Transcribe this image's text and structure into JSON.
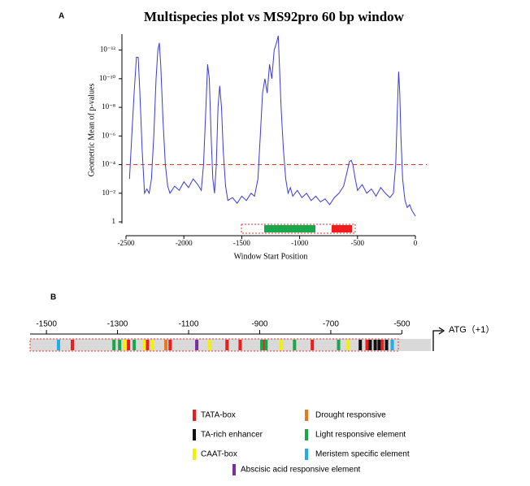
{
  "chart_data": {
    "type": "line",
    "panel": "A",
    "title": "Multispecies plot vs MS92pro 60 bp window",
    "xlabel": "Window Start Position",
    "ylabel": "Geometric Mean of p-values",
    "log_y": true,
    "xlim": [
      -2500,
      0
    ],
    "xticks": [
      -2500,
      -2000,
      -1500,
      -1000,
      -500,
      0
    ],
    "ylim": [
      1,
      1e-13
    ],
    "yticks": [
      {
        "value": 1e-12,
        "label": "10⁻¹²"
      },
      {
        "value": 1e-10,
        "label": "10⁻¹⁰"
      },
      {
        "value": 1e-08,
        "label": "10⁻⁸"
      },
      {
        "value": 1e-06,
        "label": "10⁻⁶"
      },
      {
        "value": 0.0001,
        "label": "10⁻⁴"
      },
      {
        "value": 0.01,
        "label": "10⁻²"
      },
      1
    ],
    "threshold": 0.0001,
    "threshold_color": "#e8332f",
    "color": "#3a3adc",
    "x": [
      -2470,
      -2450,
      -2430,
      -2410,
      -2395,
      -2380,
      -2360,
      -2340,
      -2320,
      -2300,
      -2280,
      -2260,
      -2240,
      -2225,
      -2212,
      -2200,
      -2180,
      -2160,
      -2140,
      -2120,
      -2080,
      -2040,
      -2000,
      -1960,
      -1920,
      -1880,
      -1850,
      -1830,
      -1810,
      -1795,
      -1780,
      -1765,
      -1750,
      -1735,
      -1720,
      -1705,
      -1690,
      -1675,
      -1660,
      -1640,
      -1620,
      -1580,
      -1540,
      -1500,
      -1460,
      -1420,
      -1390,
      -1360,
      -1340,
      -1320,
      -1300,
      -1280,
      -1260,
      -1240,
      -1220,
      -1200,
      -1185,
      -1175,
      -1160,
      -1140,
      -1120,
      -1100,
      -1080,
      -1060,
      -1020,
      -980,
      -940,
      -900,
      -860,
      -820,
      -780,
      -740,
      -700,
      -660,
      -620,
      -590,
      -570,
      -555,
      -540,
      -520,
      -500,
      -460,
      -420,
      -380,
      -340,
      -300,
      -260,
      -220,
      -190,
      -170,
      -155,
      -145,
      -135,
      -125,
      -110,
      -90,
      -70,
      -50,
      -30,
      -15,
      0
    ],
    "values": [
      0.001,
      1e-06,
      1e-09,
      3.2e-12,
      3.2e-12,
      1e-09,
      1e-05,
      0.01,
      0.005,
      0.01,
      0.001,
      1e-06,
      1e-10,
      1e-12,
      3.2e-13,
      1e-11,
      1e-07,
      0.0001,
      0.0032,
      0.01,
      0.0032,
      0.0063,
      0.0016,
      0.004,
      0.001,
      0.0025,
      0.0063,
      0.0001,
      1e-08,
      1e-11,
      1e-10,
      1e-06,
      0.001,
      0.01,
      0.0001,
      1e-08,
      3.2e-10,
      1e-08,
      1e-05,
      0.0032,
      0.032,
      0.02,
      0.05,
      0.016,
      0.032,
      0.01,
      0.016,
      0.001,
      1e-06,
      1e-09,
      1e-10,
      1e-09,
      1e-11,
      1e-10,
      1e-12,
      3.2e-13,
      1e-13,
      1e-11,
      1e-08,
      1e-05,
      0.001,
      0.01,
      0.004,
      0.016,
      0.0063,
      0.02,
      0.01,
      0.032,
      0.016,
      0.04,
      0.025,
      0.063,
      0.02,
      0.01,
      0.0032,
      0.00032,
      6.3e-05,
      5e-05,
      0.0001,
      0.001,
      0.0063,
      0.0025,
      0.01,
      0.005,
      0.016,
      0.004,
      0.01,
      0.02,
      0.01,
      0.0001,
      1e-08,
      3.2e-11,
      1e-09,
      1e-06,
      0.001,
      0.032,
      0.1,
      0.063,
      0.16,
      0.25,
      0.4
    ]
  },
  "promoter": {
    "panel": "B",
    "xlim": [
      -1546,
      -510
    ],
    "xticks": [
      -1500,
      -1300,
      -1100,
      -900,
      -700,
      -500
    ],
    "end_label": "ATG（+1）",
    "legend": [
      {
        "name": "TATA-box",
        "color": "#ee1c1c",
        "positions": [
          -1427,
          -1269,
          -1216,
          -1152,
          -992,
          -955,
          -887,
          -752,
          -598,
          -555
        ]
      },
      {
        "name": "TA-rich enhancer",
        "color": "#111111",
        "positions": [
          -617,
          -589,
          -575,
          -564,
          -543
        ]
      },
      {
        "name": "CAAT-box",
        "color": "#f5f000",
        "positions": [
          -1280,
          -1225,
          -1203,
          -1040,
          -839,
          -651
        ]
      },
      {
        "name": "Drought responsive",
        "color": "#e87722",
        "positions": [
          -1164
        ]
      },
      {
        "name": "Light responsive element",
        "color": "#1aa64a",
        "positions": [
          -1310,
          -1294,
          -1253,
          -894,
          -882,
          -802,
          -678
        ]
      },
      {
        "name": "Meristem specific element",
        "color": "#1eaee8",
        "positions": [
          -1466,
          -527
        ]
      },
      {
        "name": "Abscisic acid responsive element",
        "color": "#7a2ea0",
        "positions": [
          -1077
        ]
      }
    ]
  }
}
